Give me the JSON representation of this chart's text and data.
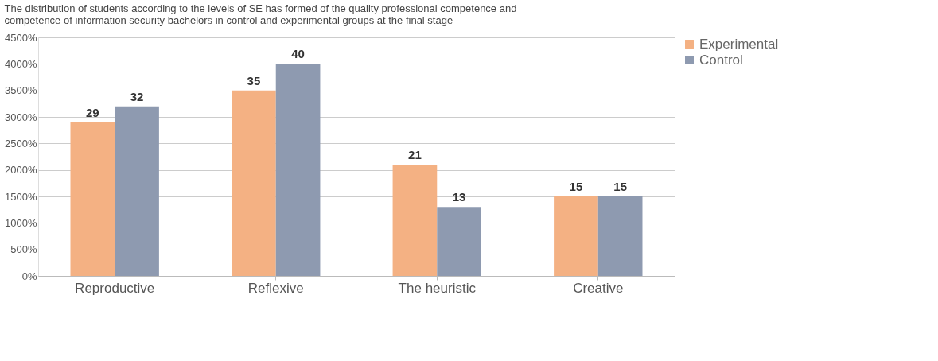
{
  "chart_data": {
    "type": "bar",
    "title": "The distribution of students according to the levels of SE has formed of the quality professional competence and competence of information security bachelors in control and experimental groups at the final stage",
    "categories": [
      "Reproductive",
      "Reflexive",
      "The heuristic",
      "Creative"
    ],
    "series": [
      {
        "name": "Experimental",
        "color": "#f4b183",
        "values": [
          29,
          35,
          21,
          15
        ],
        "value_labels": [
          "29",
          "35",
          "21",
          "15"
        ]
      },
      {
        "name": "Control",
        "color": "#8e9ab0",
        "values": [
          32,
          40,
          13,
          15
        ],
        "value_labels": [
          "32",
          "40",
          "13",
          "15"
        ]
      }
    ],
    "ylim": [
      0,
      45
    ],
    "yticks": [
      {
        "value": 0,
        "label": "0%"
      },
      {
        "value": 5,
        "label": "500%"
      },
      {
        "value": 10,
        "label": "1000%"
      },
      {
        "value": 15,
        "label": "1500%"
      },
      {
        "value": 20,
        "label": "2000%"
      },
      {
        "value": 25,
        "label": "2500%"
      },
      {
        "value": 30,
        "label": "3000%"
      },
      {
        "value": 35,
        "label": "3500%"
      },
      {
        "value": 40,
        "label": "4000%"
      },
      {
        "value": 45,
        "label": "4500%"
      }
    ],
    "grid": "y",
    "legend": "right"
  }
}
